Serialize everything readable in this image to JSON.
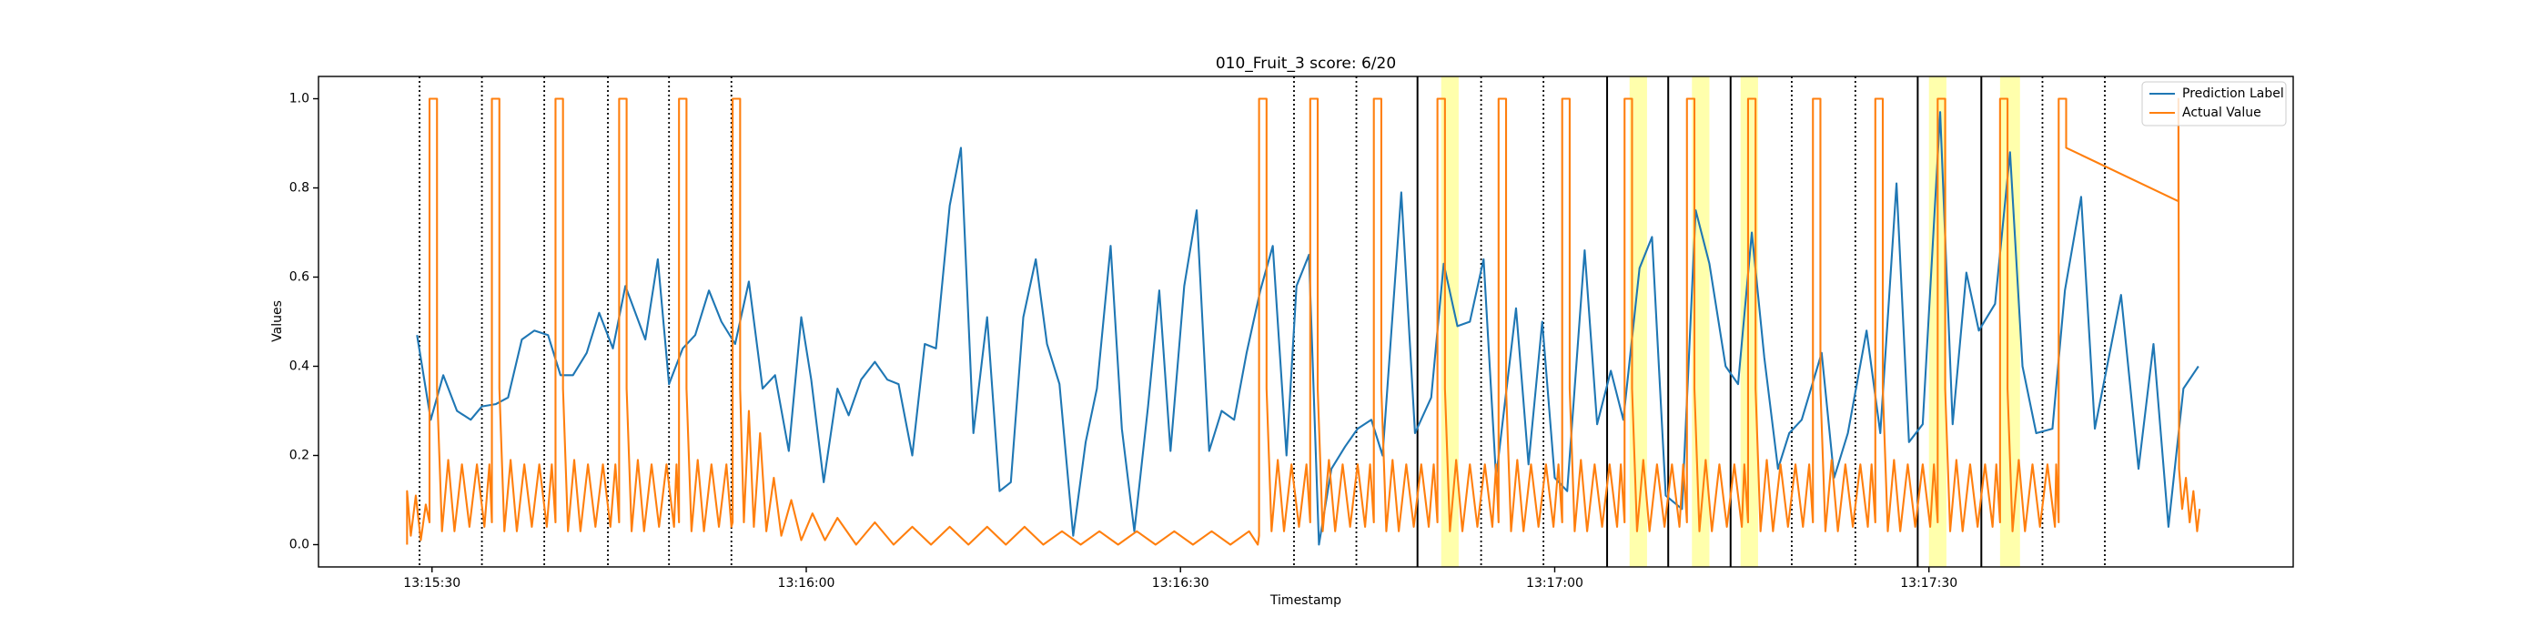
{
  "chart_data": {
    "type": "line",
    "title": "010_Fruit_3 score: 6/20",
    "xlabel": "Timestamp",
    "ylabel": "Values",
    "xlim": [
      20.9,
      179.2
    ],
    "ylim": [
      -0.05,
      1.05
    ],
    "xticks": [
      {
        "value": 30,
        "label": "13:15:30"
      },
      {
        "value": 60,
        "label": "13:16:00"
      },
      {
        "value": 90,
        "label": "13:16:30"
      },
      {
        "value": 120,
        "label": "13:17:00"
      },
      {
        "value": 150,
        "label": "13:17:30"
      }
    ],
    "yticks": [
      {
        "value": 0,
        "label": "0.0"
      },
      0.2,
      0.4,
      0.6,
      0.8,
      {
        "value": 1,
        "label": "1.0"
      }
    ],
    "legend": "upper right",
    "vlines_dotted": [
      29.0,
      34.0,
      39.0,
      44.1,
      49.0,
      54.0,
      99.1,
      104.1,
      114.1,
      119.1,
      139.0,
      144.1,
      159.1,
      164.1
    ],
    "vlines_solid": [
      109.0,
      124.2,
      129.1,
      134.1,
      149.1,
      154.2
    ],
    "spans": [
      [
        110.9,
        112.3
      ],
      [
        126.0,
        127.4
      ],
      [
        131.0,
        132.4
      ],
      [
        134.9,
        136.3
      ],
      [
        150.0,
        151.4
      ],
      [
        155.7,
        157.3
      ]
    ],
    "span_color": "#ffff9e",
    "vline_color": "#000000",
    "series": [
      {
        "name": "Prediction Label",
        "color": "#1f77b4",
        "x": [
          28.8,
          29.9,
          30.9,
          32.0,
          33.1,
          34.0,
          35.1,
          36.1,
          37.2,
          38.2,
          39.3,
          40.3,
          41.3,
          42.4,
          43.4,
          44.5,
          45.5,
          47.1,
          48.1,
          49.0,
          50.1,
          51.1,
          52.2,
          53.2,
          54.3,
          55.4,
          56.5,
          57.5,
          58.6,
          59.6,
          60.4,
          61.4,
          62.5,
          63.4,
          64.4,
          65.5,
          66.5,
          67.4,
          68.5,
          69.5,
          70.4,
          71.5,
          72.4,
          73.4,
          74.5,
          75.5,
          76.4,
          77.4,
          78.4,
          79.3,
          80.3,
          81.4,
          82.4,
          83.3,
          84.4,
          85.3,
          86.3,
          87.4,
          88.3,
          89.2,
          90.3,
          91.3,
          92.3,
          93.3,
          94.3,
          95.3,
          96.4,
          97.4,
          98.5,
          99.3,
          100.3,
          101.1,
          102.1,
          103.2,
          104.2,
          105.3,
          106.2,
          107.7,
          108.8,
          110.1,
          111.1,
          112.2,
          113.2,
          114.3,
          115.3,
          116.9,
          117.9,
          119.0,
          120.0,
          121.0,
          122.4,
          123.4,
          124.5,
          125.5,
          126.8,
          127.8,
          128.9,
          130.2,
          131.3,
          132.4,
          133.7,
          134.7,
          135.8,
          136.8,
          137.9,
          138.8,
          139.8,
          141.4,
          142.4,
          143.5,
          145.0,
          146.1,
          147.4,
          148.4,
          149.5,
          150.9,
          151.9,
          153.0,
          154.0,
          155.3,
          156.5,
          157.5,
          158.6,
          159.9,
          160.9,
          162.2,
          163.3,
          165.4,
          166.8,
          168.0,
          169.2,
          170.4,
          171.6
        ],
        "values": [
          0.47,
          0.28,
          0.38,
          0.3,
          0.28,
          0.31,
          0.315,
          0.33,
          0.46,
          0.48,
          0.47,
          0.38,
          0.38,
          0.43,
          0.52,
          0.44,
          0.58,
          0.46,
          0.64,
          0.36,
          0.44,
          0.47,
          0.57,
          0.5,
          0.45,
          0.59,
          0.35,
          0.38,
          0.21,
          0.51,
          0.37,
          0.14,
          0.35,
          0.29,
          0.37,
          0.41,
          0.37,
          0.36,
          0.2,
          0.45,
          0.44,
          0.76,
          0.89,
          0.25,
          0.51,
          0.12,
          0.14,
          0.51,
          0.64,
          0.45,
          0.36,
          0.02,
          0.23,
          0.35,
          0.67,
          0.26,
          0.03,
          0.31,
          0.57,
          0.21,
          0.58,
          0.75,
          0.21,
          0.3,
          0.28,
          0.43,
          0.57,
          0.67,
          0.2,
          0.58,
          0.65,
          0.0,
          0.17,
          0.22,
          0.26,
          0.28,
          0.2,
          0.79,
          0.25,
          0.33,
          0.63,
          0.49,
          0.5,
          0.64,
          0.15,
          0.53,
          0.18,
          0.5,
          0.15,
          0.12,
          0.66,
          0.27,
          0.39,
          0.28,
          0.62,
          0.69,
          0.11,
          0.08,
          0.75,
          0.63,
          0.4,
          0.36,
          0.7,
          0.42,
          0.17,
          0.25,
          0.28,
          0.43,
          0.15,
          0.25,
          0.48,
          0.25,
          0.81,
          0.23,
          0.27,
          0.97,
          0.27,
          0.61,
          0.48,
          0.54,
          0.88,
          0.4,
          0.25,
          0.26,
          0.57,
          0.78,
          0.26,
          0.56,
          0.17,
          0.45,
          0.04,
          0.35,
          0.4
        ]
      },
      {
        "name": "Actual Value",
        "color": "#ff7f0e",
        "x": [
          28.0,
          28.0,
          28.3,
          28.7,
          29.1,
          29.5,
          29.8,
          29.8,
          30.4,
          30.4,
          30.8,
          31.3,
          31.8,
          32.4,
          33.0,
          33.6,
          34.2,
          34.6,
          34.8,
          34.8,
          35.4,
          35.4,
          35.8,
          36.3,
          36.8,
          37.4,
          38.0,
          38.6,
          39.2,
          39.6,
          39.9,
          39.9,
          40.5,
          40.5,
          40.9,
          41.4,
          41.9,
          42.5,
          43.1,
          43.7,
          44.3,
          44.7,
          45.0,
          45.0,
          45.6,
          45.6,
          46.0,
          46.5,
          47.0,
          47.6,
          48.2,
          48.8,
          49.4,
          49.6,
          49.8,
          49.8,
          50.4,
          50.4,
          50.8,
          51.3,
          51.8,
          52.4,
          53.0,
          53.6,
          54.0,
          54.1,
          54.1,
          54.7,
          54.7,
          55.0,
          55.4,
          55.8,
          56.3,
          56.8,
          57.4,
          58.0,
          58.8,
          59.6,
          60.5,
          61.5,
          62.5,
          64.0,
          65.5,
          67.0,
          68.5,
          70.0,
          71.5,
          73.0,
          74.5,
          76.0,
          77.5,
          79.0,
          80.5,
          82.0,
          83.5,
          85.0,
          86.5,
          88.0,
          89.5,
          91.0,
          92.5,
          94.0,
          95.5,
          96.2,
          96.3,
          96.3,
          96.9,
          96.9,
          97.3,
          97.8,
          98.3,
          98.9,
          99.5,
          100.1,
          100.4,
          100.4,
          101.0,
          101.0,
          101.4,
          101.9,
          102.4,
          103.0,
          103.6,
          104.2,
          104.8,
          105.2,
          105.5,
          105.5,
          106.1,
          106.1,
          106.5,
          107.0,
          107.5,
          108.1,
          108.7,
          109.3,
          109.9,
          110.3,
          110.6,
          110.6,
          111.2,
          111.2,
          111.6,
          112.1,
          112.6,
          113.2,
          113.8,
          114.4,
          115.0,
          115.3,
          115.5,
          115.5,
          116.1,
          116.1,
          116.5,
          117.0,
          117.5,
          118.1,
          118.7,
          119.3,
          119.9,
          120.3,
          120.6,
          120.6,
          121.2,
          121.2,
          121.6,
          122.1,
          122.6,
          123.2,
          123.8,
          124.4,
          125.0,
          125.3,
          125.6,
          125.6,
          126.2,
          126.2,
          126.6,
          127.1,
          127.6,
          128.2,
          128.8,
          129.4,
          130.0,
          130.3,
          130.6,
          130.6,
          131.2,
          131.2,
          131.6,
          132.1,
          132.6,
          133.2,
          133.8,
          134.4,
          135.0,
          135.2,
          135.5,
          135.5,
          136.1,
          136.1,
          136.5,
          137.0,
          137.5,
          138.1,
          138.7,
          139.3,
          139.9,
          140.4,
          140.7,
          140.7,
          141.3,
          141.3,
          141.7,
          142.2,
          142.7,
          143.3,
          143.9,
          144.5,
          145.1,
          145.4,
          145.7,
          145.7,
          146.3,
          146.3,
          146.7,
          147.2,
          147.7,
          148.3,
          148.9,
          149.5,
          150.1,
          150.4,
          150.7,
          150.7,
          151.3,
          151.3,
          151.7,
          152.2,
          152.7,
          153.3,
          153.9,
          154.5,
          155.1,
          155.4,
          155.7,
          155.7,
          156.3,
          156.3,
          156.7,
          157.2,
          157.7,
          158.3,
          158.9,
          159.5,
          160.1,
          160.2,
          160.4,
          160.4,
          161.0,
          161.0,
          170.0,
          170.0,
          170.05,
          170.3,
          170.6,
          170.9,
          171.2,
          171.5,
          171.7
        ],
        "values": [
          0.0,
          0.12,
          0.02,
          0.11,
          0.01,
          0.09,
          0.05,
          1,
          1,
          0.35,
          0.03,
          0.19,
          0.03,
          0.18,
          0.04,
          0.18,
          0.04,
          0.18,
          0.05,
          1,
          1,
          0.35,
          0.03,
          0.19,
          0.03,
          0.18,
          0.04,
          0.18,
          0.04,
          0.18,
          0.05,
          1,
          1,
          0.35,
          0.03,
          0.19,
          0.03,
          0.18,
          0.04,
          0.18,
          0.04,
          0.18,
          0.05,
          1,
          1,
          0.35,
          0.03,
          0.19,
          0.03,
          0.18,
          0.04,
          0.18,
          0.04,
          0.18,
          0.05,
          1,
          1,
          0.35,
          0.03,
          0.19,
          0.03,
          0.18,
          0.04,
          0.18,
          0.04,
          0.05,
          1,
          1,
          0.35,
          0.05,
          0.3,
          0.04,
          0.25,
          0.03,
          0.15,
          0.02,
          0.1,
          0.01,
          0.07,
          0.01,
          0.06,
          0.0,
          0.05,
          0.0,
          0.04,
          0.0,
          0.04,
          0.0,
          0.04,
          0.0,
          0.04,
          0.0,
          0.03,
          0.0,
          0.03,
          0.0,
          0.03,
          0.0,
          0.03,
          0.0,
          0.03,
          0.0,
          0.03,
          0.0,
          0.02,
          1,
          1,
          0.35,
          0.03,
          0.19,
          0.03,
          0.18,
          0.04,
          0.18,
          0.05,
          1,
          1,
          0.35,
          0.03,
          0.19,
          0.03,
          0.18,
          0.04,
          0.18,
          0.04,
          0.18,
          0.05,
          1,
          1,
          0.35,
          0.03,
          0.19,
          0.03,
          0.18,
          0.04,
          0.18,
          0.04,
          0.18,
          0.05,
          1,
          1,
          0.35,
          0.03,
          0.19,
          0.03,
          0.18,
          0.04,
          0.18,
          0.04,
          0.18,
          0.05,
          1,
          1,
          0.35,
          0.03,
          0.19,
          0.03,
          0.18,
          0.04,
          0.18,
          0.04,
          0.18,
          0.05,
          1,
          1,
          0.35,
          0.03,
          0.19,
          0.03,
          0.18,
          0.04,
          0.18,
          0.04,
          0.18,
          0.05,
          1,
          1,
          0.35,
          0.03,
          0.19,
          0.03,
          0.18,
          0.04,
          0.18,
          0.04,
          0.18,
          0.05,
          1,
          1,
          0.35,
          0.03,
          0.19,
          0.03,
          0.18,
          0.04,
          0.18,
          0.04,
          0.18,
          0.05,
          1,
          1,
          0.35,
          0.03,
          0.19,
          0.03,
          0.18,
          0.04,
          0.18,
          0.04,
          0.18,
          0.05,
          1,
          1,
          0.35,
          0.03,
          0.19,
          0.03,
          0.18,
          0.04,
          0.18,
          0.04,
          0.18,
          0.05,
          1,
          1,
          0.35,
          0.03,
          0.19,
          0.03,
          0.18,
          0.04,
          0.18,
          0.04,
          0.18,
          0.05,
          1,
          1,
          0.35,
          0.03,
          0.19,
          0.03,
          0.18,
          0.04,
          0.18,
          0.04,
          0.18,
          0.05,
          1,
          1,
          0.35,
          0.03,
          0.19,
          0.03,
          0.18,
          0.04,
          0.18,
          0.04,
          0.18,
          0.05,
          1,
          1,
          0.89,
          0.77,
          1,
          0.17,
          0.08,
          0.15,
          0.05,
          0.12,
          0.03,
          0.08
        ]
      }
    ]
  }
}
